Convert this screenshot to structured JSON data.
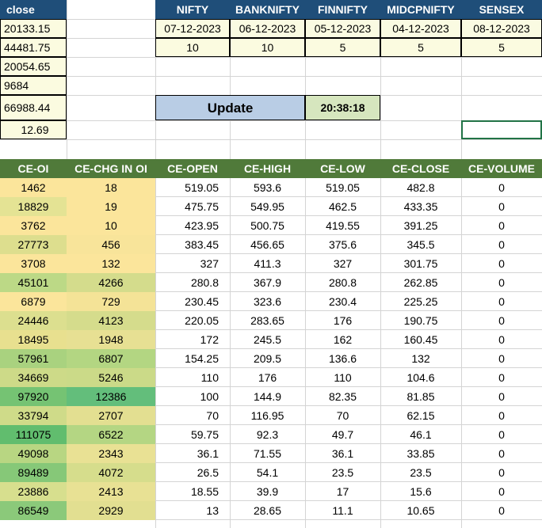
{
  "left_column": {
    "header": "close",
    "values": [
      "20133.15",
      "44481.75",
      "20054.65",
      "9684",
      "66988.44",
      "12.69"
    ]
  },
  "index_table": {
    "headers": [
      "NIFTY",
      "BANKNIFTY",
      "FINNIFTY",
      "MIDCPNIFTY",
      "SENSEX"
    ],
    "dates": [
      "07-12-2023",
      "06-12-2023",
      "05-12-2023",
      "04-12-2023",
      "08-12-2023"
    ],
    "counts": [
      "10",
      "10",
      "5",
      "5",
      "5"
    ]
  },
  "update": {
    "label": "Update",
    "time": "20:38:18"
  },
  "option_table": {
    "headers": [
      "CE-OI",
      "CE-CHG IN OI",
      "CE-OPEN",
      "CE-HIGH",
      "CE-LOW",
      "CE-CLOSE",
      "CE-VOLUME"
    ],
    "rows": [
      [
        "1462",
        "18",
        "519.05",
        "593.6",
        "519.05",
        "482.8",
        "0"
      ],
      [
        "18829",
        "19",
        "475.75",
        "549.95",
        "462.5",
        "433.35",
        "0"
      ],
      [
        "3762",
        "10",
        "423.95",
        "500.75",
        "419.55",
        "391.25",
        "0"
      ],
      [
        "27773",
        "456",
        "383.45",
        "456.65",
        "375.6",
        "345.5",
        "0"
      ],
      [
        "3708",
        "132",
        "327",
        "411.3",
        "327",
        "301.75",
        "0"
      ],
      [
        "45101",
        "4266",
        "280.8",
        "367.9",
        "280.8",
        "262.85",
        "0"
      ],
      [
        "6879",
        "729",
        "230.45",
        "323.6",
        "230.4",
        "225.25",
        "0"
      ],
      [
        "24446",
        "4123",
        "220.05",
        "283.65",
        "176",
        "190.75",
        "0"
      ],
      [
        "18495",
        "1948",
        "172",
        "245.5",
        "162",
        "160.45",
        "0"
      ],
      [
        "57961",
        "6807",
        "154.25",
        "209.5",
        "136.6",
        "132",
        "0"
      ],
      [
        "34669",
        "5246",
        "110",
        "176",
        "110",
        "104.6",
        "0"
      ],
      [
        "97920",
        "12386",
        "100",
        "144.9",
        "82.35",
        "81.85",
        "0"
      ],
      [
        "33794",
        "2707",
        "70",
        "116.95",
        "70",
        "62.15",
        "0"
      ],
      [
        "111075",
        "6522",
        "59.75",
        "92.3",
        "49.7",
        "46.1",
        "0"
      ],
      [
        "49098",
        "2343",
        "36.1",
        "71.55",
        "36.1",
        "33.85",
        "0"
      ],
      [
        "89489",
        "4072",
        "26.5",
        "54.1",
        "23.5",
        "23.5",
        "0"
      ],
      [
        "23886",
        "2413",
        "18.55",
        "39.9",
        "17",
        "15.6",
        "0"
      ],
      [
        "86549",
        "2929",
        "13",
        "28.65",
        "11.1",
        "10.65",
        "0"
      ]
    ],
    "heat_colors": {
      "oi": [
        "#fbe59b",
        "#e4e394",
        "#fbe59b",
        "#ddde8e",
        "#fbe59b",
        "#bcd986",
        "#fbe59b",
        "#dcdf8f",
        "#e8e08f",
        "#a9d27f",
        "#cdda88",
        "#75c373",
        "#cfdb89",
        "#61bd6e",
        "#b8d682",
        "#86c878",
        "#d7df8e",
        "#8bc97a"
      ],
      "chg": [
        "#fbe59b",
        "#fbe59b",
        "#fbe59b",
        "#f8e49a",
        "#fbe59b",
        "#d4dc8c",
        "#f4e397",
        "#d5dc8c",
        "#e7e093",
        "#b3d682",
        "#cbda88",
        "#63be7b",
        "#e3df91",
        "#b4d683",
        "#e9e194",
        "#d6dd8c",
        "#e8e194",
        "#e2df91"
      ]
    }
  }
}
